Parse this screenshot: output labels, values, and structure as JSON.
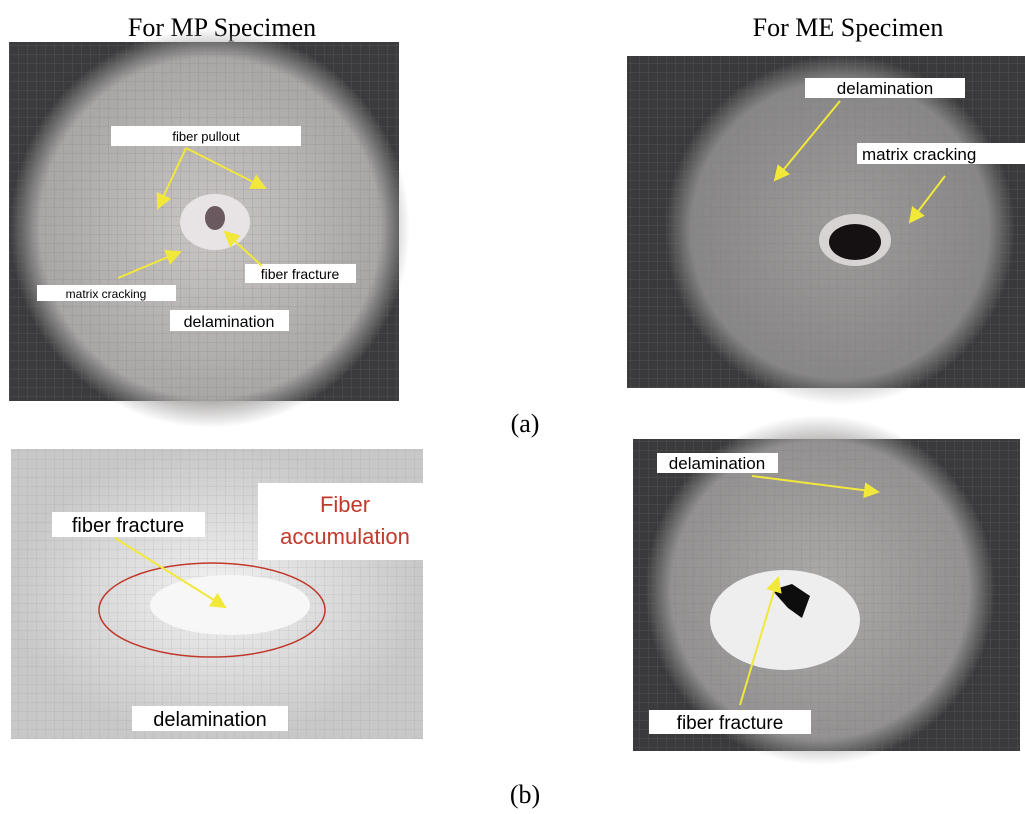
{
  "headers": {
    "mp": "For MP Specimen",
    "me": "For ME Specimen"
  },
  "captions": [
    "(a)",
    "(b)"
  ],
  "panels": [
    {
      "labels": [
        "fiber pullout",
        "matrix cracking",
        "fiber fracture",
        "delamination"
      ]
    },
    {
      "labels": [
        "delamination",
        "matrix cracking"
      ]
    },
    {
      "labels": [
        "fiber fracture",
        "Fiber",
        "accumulation",
        "delamination"
      ]
    },
    {
      "labels": [
        "delamination",
        "fiber fracture"
      ]
    }
  ]
}
